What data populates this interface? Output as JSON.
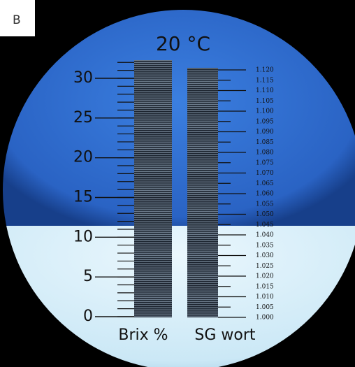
{
  "panel_label": "B",
  "title": "20 °C",
  "brix_scale": {
    "labels": [
      "30",
      "25",
      "20",
      "15",
      "10",
      "5",
      "0"
    ],
    "caption": "Brix %"
  },
  "sg_scale": {
    "labels": [
      "1.120",
      "1.115",
      "1.110",
      "1.105",
      "1.100",
      "1.095",
      "1.090",
      "1.085",
      "1.080",
      "1.075",
      "1.070",
      "1.065",
      "1.060",
      "1.055",
      "1.050",
      "1.045",
      "1.040",
      "1.035",
      "1.030",
      "1.025",
      "1.020",
      "1.015",
      "1.010",
      "1.005",
      "1.000"
    ],
    "caption": "SG wort"
  }
}
